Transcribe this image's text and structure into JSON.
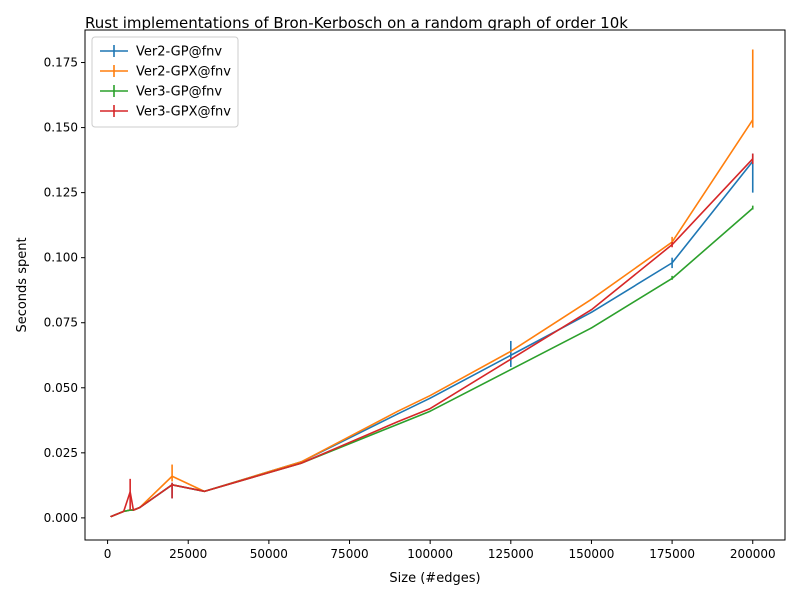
{
  "chart_data": {
    "type": "line",
    "title": "Rust implementations of Bron-Kerbosch on a random graph of order 10k",
    "xlabel": "Size (#edges)",
    "ylabel": "Seconds spent",
    "xlim": [
      -7000,
      210000
    ],
    "ylim": [
      -0.0085,
      0.1875
    ],
    "xticks": [
      0,
      25000,
      50000,
      75000,
      100000,
      125000,
      150000,
      175000,
      200000
    ],
    "xtick_labels": [
      "0",
      "25000",
      "50000",
      "75000",
      "100000",
      "125000",
      "150000",
      "175000",
      "200000"
    ],
    "yticks": [
      0.0,
      0.025,
      0.05,
      0.075,
      0.1,
      0.125,
      0.15,
      0.175
    ],
    "ytick_labels": [
      "0.000",
      "0.025",
      "0.050",
      "0.075",
      "0.100",
      "0.125",
      "0.150",
      "0.175"
    ],
    "grid": false,
    "legend_position": "top-left",
    "x": [
      1000,
      5000,
      7000,
      8000,
      10000,
      20000,
      30000,
      60000,
      90000,
      100000,
      125000,
      150000,
      175000,
      200000
    ],
    "series": [
      {
        "name": "Ver2-GP@fnv",
        "color": "#1f77b4",
        "values": [
          0.0005,
          0.0025,
          0.003,
          0.003,
          0.004,
          0.0127,
          0.0102,
          0.0215,
          0.04,
          0.046,
          0.0625,
          0.079,
          0.098,
          0.137
        ],
        "err_low": [
          0.0005,
          0.0025,
          0.003,
          0.003,
          0.004,
          0.0075,
          0.0102,
          0.0215,
          0.04,
          0.046,
          0.058,
          0.079,
          0.096,
          0.125
        ],
        "err_high": [
          0.0005,
          0.0025,
          0.003,
          0.003,
          0.004,
          0.0135,
          0.0102,
          0.0215,
          0.04,
          0.046,
          0.068,
          0.079,
          0.1,
          0.14
        ]
      },
      {
        "name": "Ver2-GPX@fnv",
        "color": "#ff7f0e",
        "values": [
          0.0005,
          0.0025,
          0.003,
          0.003,
          0.004,
          0.016,
          0.0102,
          0.0215,
          0.041,
          0.047,
          0.064,
          0.084,
          0.106,
          0.153
        ],
        "err_low": [
          0.0005,
          0.0025,
          0.003,
          0.003,
          0.004,
          0.014,
          0.0102,
          0.0215,
          0.041,
          0.047,
          0.064,
          0.084,
          0.105,
          0.15
        ],
        "err_high": [
          0.0005,
          0.0025,
          0.003,
          0.003,
          0.004,
          0.0205,
          0.0102,
          0.0215,
          0.041,
          0.047,
          0.064,
          0.084,
          0.108,
          0.18
        ]
      },
      {
        "name": "Ver3-GP@fnv",
        "color": "#2ca02c",
        "values": [
          0.0005,
          0.0025,
          0.003,
          0.003,
          0.004,
          0.0127,
          0.0102,
          0.021,
          0.036,
          0.041,
          0.057,
          0.073,
          0.092,
          0.119
        ],
        "err_low": [
          0.0005,
          0.0025,
          0.003,
          0.003,
          0.004,
          0.0127,
          0.0102,
          0.021,
          0.036,
          0.041,
          0.057,
          0.073,
          0.0915,
          0.1185
        ],
        "err_high": [
          0.0005,
          0.0025,
          0.003,
          0.003,
          0.004,
          0.0127,
          0.0102,
          0.021,
          0.036,
          0.041,
          0.057,
          0.073,
          0.093,
          0.12
        ]
      },
      {
        "name": "Ver3-GPX@fnv",
        "color": "#d62728",
        "values": [
          0.0005,
          0.0025,
          0.01,
          0.003,
          0.004,
          0.0127,
          0.0102,
          0.021,
          0.037,
          0.042,
          0.061,
          0.08,
          0.105,
          0.138
        ],
        "err_low": [
          0.0005,
          0.0025,
          0.003,
          0.003,
          0.004,
          0.0075,
          0.0102,
          0.021,
          0.037,
          0.042,
          0.061,
          0.08,
          0.104,
          0.136
        ],
        "err_high": [
          0.0005,
          0.0025,
          0.015,
          0.003,
          0.004,
          0.0135,
          0.0102,
          0.021,
          0.037,
          0.042,
          0.061,
          0.08,
          0.106,
          0.14
        ]
      }
    ]
  }
}
